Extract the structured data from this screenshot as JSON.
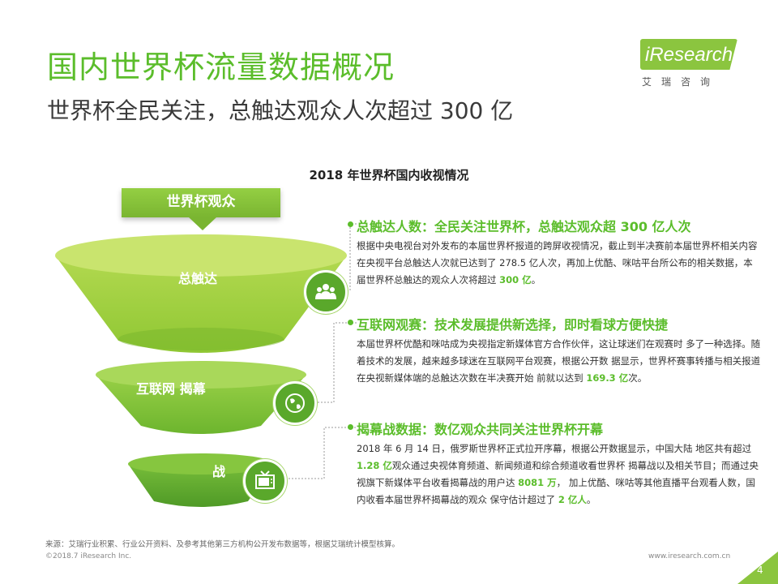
{
  "header": {
    "title": "国内世界杯流量数据概况",
    "subtitle": "世界杯全民关注，总触达观众人次超过 300 亿"
  },
  "logo": {
    "brand": "iResearch",
    "cn": "艾瑞咨询"
  },
  "chart": {
    "title": "2018 年世界杯国内收视情况",
    "audience_label": "世界杯观众",
    "tiers": [
      {
        "label": "总触达",
        "icon": "people-icon"
      },
      {
        "label": "互联网 揭幕",
        "icon": "globe-icon"
      },
      {
        "label": "战",
        "icon": "tv-icon"
      }
    ]
  },
  "sections": [
    {
      "heading": "总触达人数：全民关注世界杯，总触达观众超 300 亿人次",
      "body_pre": "根据中央电视台对外发布的本届世界杯报道的跨屏收视情况，截止到半决赛前本届世界杯相关内容在央视平台总触达人次就已达到了 278.5 亿人次，再加上优酷、咪咕平台所公布的相关数据，本届世界杯总触达的观众人次将超过 ",
      "body_hl": "300 亿",
      "body_post": "。"
    },
    {
      "heading": "互联网观赛：技术发展提供新选择，即时看球方便快捷",
      "body_pre": "本届世界杯优酷和咪咕成为央视指定新媒体官方合作伙伴，这让球迷们在观赛时 多了一种选择。随着技术的发展，越来越多球迷在互联网平台观赛，根据公开数 据显示，世界杯赛事转播与相关报道在央视新媒体端的总触达次数在半决赛开始 前就以达到 ",
      "body_hl": "169.3 亿",
      "body_post": "次。"
    },
    {
      "heading": "揭幕战数据：数亿观众共同关注世界杯开幕",
      "body_a": "2018 年 6 月 14 日，俄罗斯世界杯正式拉开序幕，根据公开数据显示，中国大陆 地区共有超过 ",
      "hl_a": "1.28 亿",
      "body_b": "观众通过央视体育频道、新闻频道和综合频道收看世界杯 揭幕战以及相关节目；而通过央视旗下新媒体平台收看揭幕战的用户达 ",
      "hl_b": "8081 万",
      "body_c": "， 加上优酷、咪咕等其他直播平台观看人数，国内收看本届世界杯揭幕战的观众 保守估计超过了 ",
      "hl_c": "2 亿人",
      "body_d": "。"
    }
  ],
  "footer": {
    "source": "来源：艾瑞行业积累、行业公开资料、及参考其他第三方机构公开发布数据等，根据艾瑞统计模型核算。",
    "copyright": "©2018.7 iResearch Inc.",
    "website": "www.iresearch.com.cn",
    "page": "4"
  },
  "colors": {
    "accent": "#5bbd2b",
    "funnel_top": "#a7d43c",
    "funnel_mid": "#86c537",
    "funnel_bottom": "#5aa82b"
  }
}
